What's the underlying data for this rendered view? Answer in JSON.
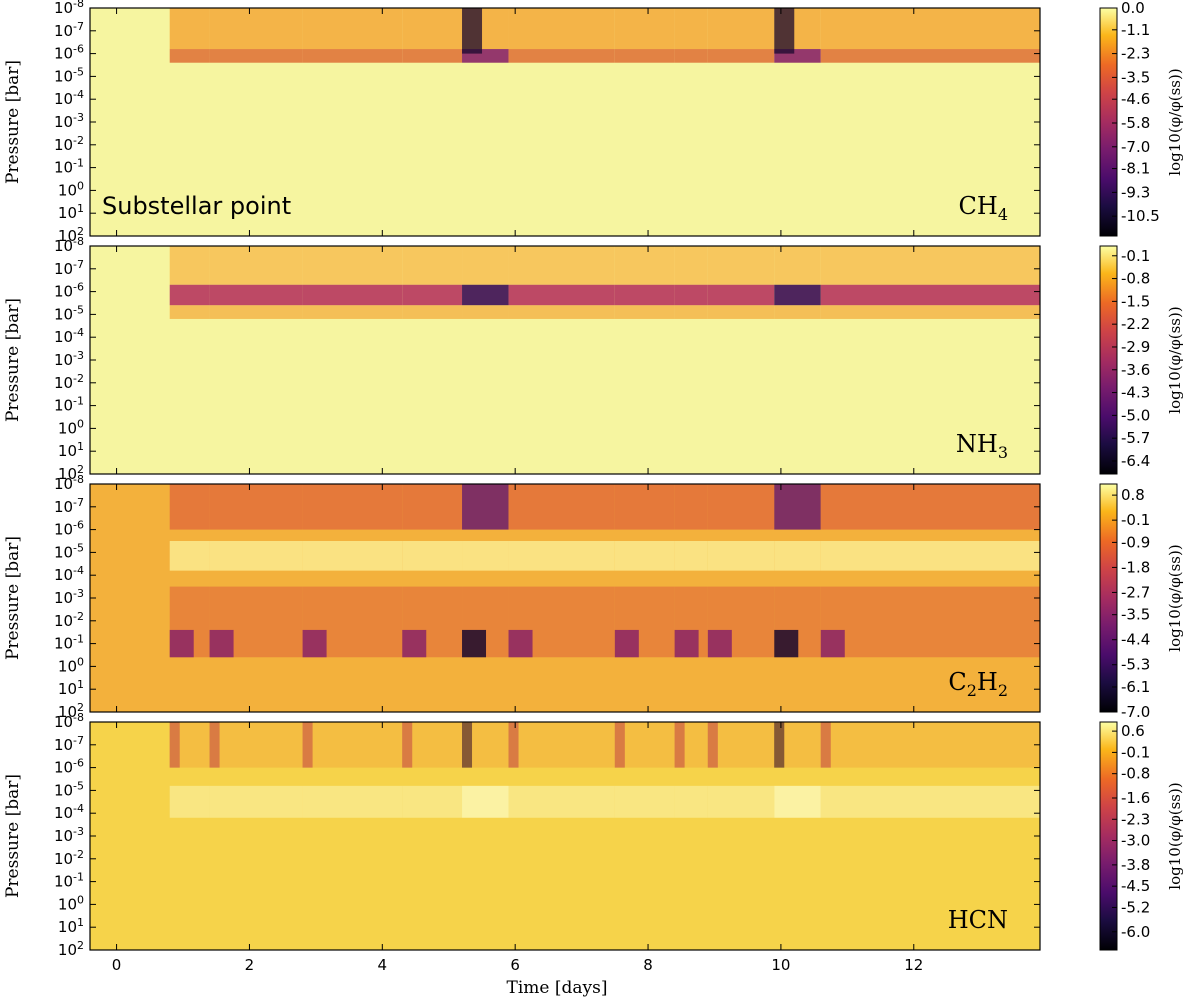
{
  "chart_data": {
    "type": "heatmap",
    "xlabel": "Time [days]",
    "ylabel": "Pressure [bar]",
    "xlim": [
      -0.4,
      13.9
    ],
    "x_ticks": [
      "0",
      "2",
      "4",
      "6",
      "8",
      "10",
      "12"
    ],
    "y_log_range": [
      -8,
      2
    ],
    "y_ticks": [
      "10-8",
      "10-7",
      "10-6",
      "10-5",
      "10-4",
      "10-3",
      "10-2",
      "10-1",
      "100",
      "101",
      "102"
    ],
    "y_tick_exponents": [
      -8,
      -7,
      -6,
      -5,
      -4,
      -3,
      -2,
      -1,
      0,
      1,
      2
    ],
    "colormap": "inferno",
    "colorbar_label": "log10(φ/φ(ss))",
    "annotation": "Substellar point",
    "event_times": [
      0.8,
      1.4,
      2.8,
      4.3,
      5.2,
      5.9,
      7.5,
      8.4,
      8.9,
      9.9,
      10.6
    ],
    "panels": [
      {
        "species": "CH4",
        "species_base": "CH",
        "species_sub": "4",
        "cbar_ticks": [
          "0.0",
          "-1.1",
          "-2.3",
          "-3.5",
          "-4.6",
          "-5.8",
          "-7.0",
          "-8.1",
          "-9.3",
          "-10.5"
        ],
        "cbar_range": [
          -11.5,
          0.0
        ]
      },
      {
        "species": "NH3",
        "species_base": "NH",
        "species_sub": "3",
        "cbar_ticks": [
          "-0.1",
          "-0.8",
          "-1.5",
          "-2.2",
          "-2.9",
          "-3.6",
          "-4.3",
          "-5.0",
          "-5.7",
          "-6.4"
        ],
        "cbar_range": [
          -6.8,
          0.2
        ]
      },
      {
        "species": "C2H2",
        "species_base": "C",
        "species_mid": "2",
        "species_base2": "H",
        "species_sub": "2",
        "cbar_ticks": [
          "0.8",
          "-0.1",
          "-0.9",
          "-1.8",
          "-2.7",
          "-3.5",
          "-4.4",
          "-5.3",
          "-6.1",
          "-7.0"
        ],
        "cbar_range": [
          -7.0,
          1.2
        ]
      },
      {
        "species": "HCN",
        "species_base": "HCN",
        "species_sub": "",
        "cbar_ticks": [
          "0.6",
          "-0.1",
          "-0.8",
          "-1.6",
          "-2.3",
          "-3.0",
          "-3.8",
          "-4.5",
          "-5.2",
          "-6.0"
        ],
        "cbar_range": [
          -6.6,
          0.9
        ]
      }
    ]
  }
}
